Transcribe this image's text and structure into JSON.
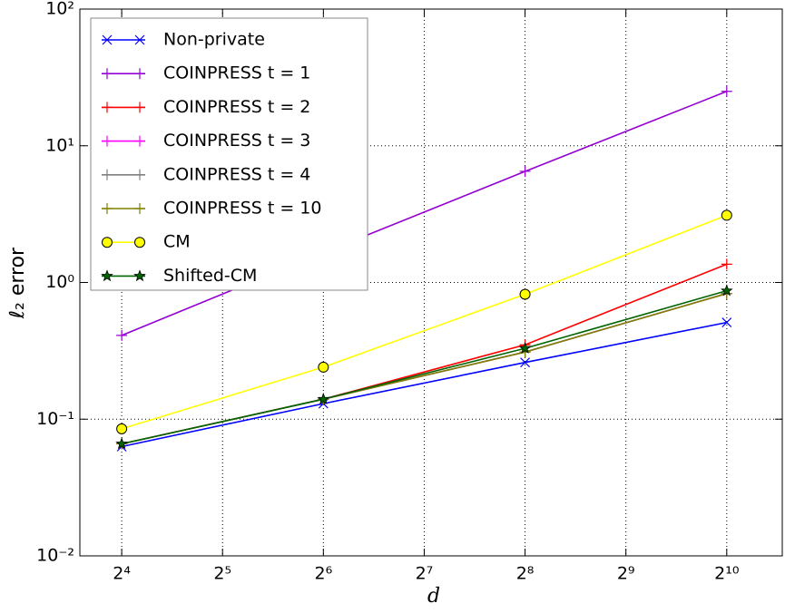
{
  "chart_data": {
    "type": "line",
    "xlabel": "d",
    "ylabel": "ℓ₂ error",
    "xscale": "log2",
    "yscale": "log",
    "grid": true,
    "legend": "upper left",
    "x": [
      16,
      64,
      256,
      1024
    ],
    "xlim": [
      12,
      1500
    ],
    "xticks": [
      {
        "value": 16,
        "label": "2⁴"
      },
      {
        "value": 32,
        "label": "2⁵"
      },
      {
        "value": 64,
        "label": "2⁶"
      },
      {
        "value": 128,
        "label": "2⁷"
      },
      {
        "value": 256,
        "label": "2⁸"
      },
      {
        "value": 512,
        "label": "2⁹"
      },
      {
        "value": 1024,
        "label": "2¹⁰"
      }
    ],
    "ylim": [
      0.01,
      100
    ],
    "yticks": [
      {
        "value": 0.01,
        "label": "10⁻²"
      },
      {
        "value": 0.1,
        "label": "10⁻¹"
      },
      {
        "value": 1,
        "label": "10⁰"
      },
      {
        "value": 10,
        "label": "10¹"
      },
      {
        "value": 100,
        "label": "10²"
      }
    ],
    "series": [
      {
        "name": "Non-private",
        "color": "#0000ff",
        "marker": "x",
        "values": [
          0.063,
          0.13,
          0.26,
          0.51
        ]
      },
      {
        "name": "COINPRESS t = 1",
        "color": "#9400d3",
        "marker": "+",
        "values": [
          0.41,
          1.65,
          6.5,
          25
        ]
      },
      {
        "name": "COINPRESS t = 2",
        "color": "#ff0000",
        "marker": "+",
        "values": [
          0.066,
          0.14,
          0.35,
          1.36
        ]
      },
      {
        "name": "COINPRESS t = 3",
        "color": "#ff00ff",
        "marker": "+",
        "values": [
          0.066,
          0.14,
          0.31,
          0.83
        ]
      },
      {
        "name": "COINPRESS t = 4",
        "color": "#808080",
        "marker": "+",
        "values": [
          0.066,
          0.14,
          0.31,
          0.83
        ]
      },
      {
        "name": "COINPRESS t = 10",
        "color": "#808000",
        "marker": "+",
        "values": [
          0.066,
          0.14,
          0.31,
          0.83
        ]
      },
      {
        "name": "CM",
        "color": "#ffff00",
        "marker": "o",
        "values": [
          0.085,
          0.24,
          0.82,
          3.1
        ]
      },
      {
        "name": "Shifted-CM",
        "color": "#006400",
        "marker": "*",
        "values": [
          0.066,
          0.14,
          0.33,
          0.87
        ]
      }
    ]
  }
}
